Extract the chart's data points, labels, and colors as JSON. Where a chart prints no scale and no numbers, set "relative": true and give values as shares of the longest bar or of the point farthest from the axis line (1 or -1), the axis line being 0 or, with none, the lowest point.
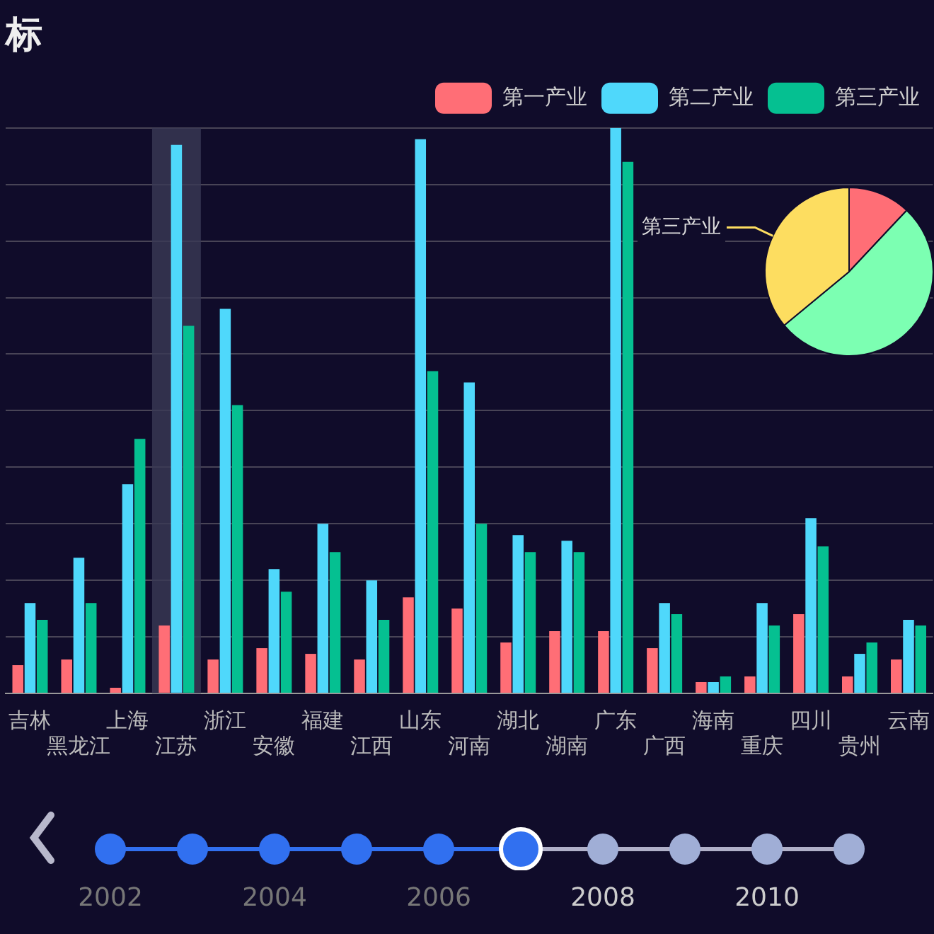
{
  "chart_data": [
    {
      "type": "bar",
      "title": "标",
      "relative": true,
      "grid": "y",
      "legend": "top right",
      "categories": [
        "吉林",
        "黑龙江",
        "上海",
        "江苏",
        "浙江",
        "安徽",
        "福建",
        "江西",
        "山东",
        "河南",
        "湖北",
        "湖南",
        "广东",
        "广西",
        "海南",
        "重庆",
        "四川",
        "贵州",
        "云南"
      ],
      "series": [
        {
          "name": "第一产业",
          "color": "#ff6e76",
          "values": [
            0.05,
            0.06,
            0.01,
            0.12,
            0.06,
            0.08,
            0.07,
            0.06,
            0.17,
            0.15,
            0.09,
            0.11,
            0.11,
            0.08,
            0.02,
            0.03,
            0.14,
            0.03,
            0.06
          ]
        },
        {
          "name": "第二产业",
          "color": "#4fd8fb",
          "values": [
            0.16,
            0.24,
            0.37,
            0.97,
            0.68,
            0.22,
            0.3,
            0.2,
            0.98,
            0.55,
            0.28,
            0.27,
            1,
            0.16,
            0.02,
            0.16,
            0.31,
            0.07,
            0.13
          ]
        },
        {
          "name": "第三产业",
          "color": "#05c091",
          "values": [
            0.13,
            0.16,
            0.45,
            0.65,
            0.51,
            0.18,
            0.25,
            0.13,
            0.57,
            0.3,
            0.25,
            0.25,
            0.94,
            0.14,
            0.03,
            0.12,
            0.26,
            0.09,
            0.12
          ]
        }
      ],
      "bands": [
        {
          "axis": "x",
          "from": "江苏",
          "to": "江苏",
          "color": "#3a3a55"
        }
      ],
      "annotations": [
        "2002",
        "2004",
        "2006",
        "2008",
        "2010"
      ]
    },
    {
      "type": "pie",
      "categories": [
        null,
        null,
        "第三产业"
      ],
      "values": [
        12,
        52,
        36
      ],
      "colors": [
        "#ff6e76",
        "#7cffb2",
        "#fddd60"
      ]
    }
  ]
}
